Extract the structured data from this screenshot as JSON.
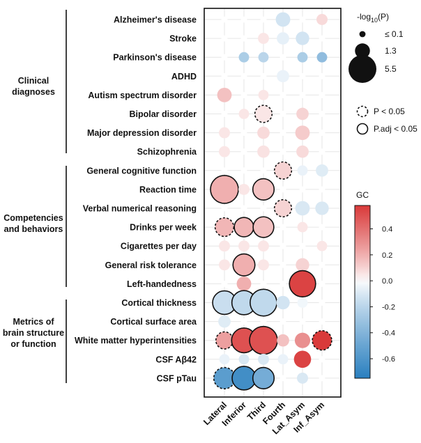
{
  "chart_data": {
    "type": "bubble-heatmap",
    "columns": [
      "Lateral",
      "Inferior",
      "Third",
      "Fourth",
      "Lat_Asym",
      "Inf_Asym"
    ],
    "groups": [
      {
        "label": [
          "Clinical",
          "diagnoses"
        ],
        "rows": [
          "Alzheimer's disease",
          "Stroke",
          "Parkinson's disease",
          "ADHD",
          "Autism spectrum disorder",
          "Bipolar disorder",
          "Major depression disorder",
          "Schizophrenia"
        ]
      },
      {
        "label": [
          "Competencies",
          "and behaviors"
        ],
        "rows": [
          "General cognitive function",
          "Reaction time",
          "Verbal numerical reasoning",
          "Drinks per week",
          "Cigarettes per day",
          "General risk tolerance",
          "Left-handedness"
        ]
      },
      {
        "label": [
          "Metrics of",
          "brain structure",
          "or function"
        ],
        "rows": [
          "Cortical thickness",
          "Cortical surface area",
          "White matter hyperintensities",
          "CSF Aβ42",
          "CSF pTau"
        ]
      }
    ],
    "rows": [
      "Alzheimer's disease",
      "Stroke",
      "Parkinson's disease",
      "ADHD",
      "Autism spectrum disorder",
      "Bipolar disorder",
      "Major depression disorder",
      "Schizophrenia",
      "General cognitive function",
      "Reaction time",
      "Verbal numerical reasoning",
      "Drinks per week",
      "Cigarettes per day",
      "General risk tolerance",
      "Left-handedness",
      "Cortical thickness",
      "Cortical surface area",
      "White matter hyperintensities",
      "CSF Aβ42",
      "CSF pTau"
    ],
    "gc": [
      [
        0.0,
        0.0,
        0.0,
        -0.12,
        0.0,
        0.08
      ],
      [
        0.0,
        0.0,
        0.05,
        -0.06,
        -0.12,
        0.0
      ],
      [
        0.0,
        -0.25,
        -0.2,
        0.0,
        -0.25,
        -0.35
      ],
      [
        0.0,
        0.0,
        0.0,
        -0.05,
        0.0,
        0.0
      ],
      [
        0.15,
        0.0,
        0.05,
        0.0,
        0.0,
        0.0
      ],
      [
        0.0,
        0.05,
        0.05,
        0.0,
        0.1,
        0.0
      ],
      [
        0.05,
        0.0,
        0.08,
        0.0,
        0.12,
        0.0
      ],
      [
        0.05,
        0.0,
        0.06,
        0.0,
        0.08,
        0.0
      ],
      [
        0.0,
        0.0,
        0.0,
        0.1,
        -0.05,
        -0.08
      ],
      [
        0.2,
        0.05,
        0.15,
        0.0,
        0.0,
        0.0
      ],
      [
        0.0,
        0.0,
        0.0,
        0.1,
        -0.1,
        -0.1
      ],
      [
        0.18,
        0.18,
        0.15,
        0.0,
        0.05,
        0.0
      ],
      [
        0.05,
        0.05,
        0.05,
        0.0,
        0.0,
        0.05
      ],
      [
        0.05,
        0.2,
        0.05,
        0.0,
        0.1,
        0.0
      ],
      [
        0.0,
        0.2,
        0.0,
        0.0,
        0.55,
        0.0
      ],
      [
        -0.15,
        -0.18,
        -0.18,
        -0.12,
        -0.03,
        0.0
      ],
      [
        -0.08,
        0.0,
        0.0,
        0.0,
        0.0,
        0.0
      ],
      [
        0.25,
        0.5,
        0.5,
        0.15,
        0.3,
        0.6
      ],
      [
        -0.05,
        -0.1,
        -0.1,
        -0.05,
        0.55,
        0.0
      ],
      [
        -0.55,
        -0.65,
        -0.45,
        0.0,
        -0.1,
        0.0
      ]
    ],
    "neg_log10_p": [
      [
        0.1,
        0.1,
        0.1,
        1.2,
        0.1,
        0.6
      ],
      [
        0.1,
        0.1,
        0.6,
        0.8,
        1.0,
        0.1
      ],
      [
        0.1,
        0.5,
        0.5,
        0.1,
        0.5,
        0.5
      ],
      [
        0.1,
        0.1,
        0.1,
        0.8,
        0.1,
        0.1
      ],
      [
        1.2,
        0.1,
        0.5,
        0.1,
        0.1,
        0.1
      ],
      [
        0.1,
        0.5,
        1.8,
        0.1,
        0.8,
        0.1
      ],
      [
        0.6,
        0.1,
        0.8,
        0.1,
        1.2,
        0.1
      ],
      [
        0.6,
        0.1,
        0.8,
        0.1,
        0.8,
        0.1
      ],
      [
        0.1,
        0.1,
        0.1,
        1.8,
        0.5,
        0.8
      ],
      [
        5.5,
        0.6,
        3.0,
        0.1,
        0.1,
        0.1
      ],
      [
        0.1,
        0.1,
        0.1,
        1.8,
        1.2,
        1.0
      ],
      [
        2.2,
        2.4,
        2.8,
        0.1,
        0.5,
        0.1
      ],
      [
        0.6,
        0.6,
        0.6,
        0.1,
        0.1,
        0.5
      ],
      [
        0.6,
        3.2,
        0.6,
        0.1,
        1.0,
        0.1
      ],
      [
        0.1,
        1.2,
        0.1,
        0.1,
        4.8,
        0.1
      ],
      [
        3.8,
        4.0,
        5.0,
        1.0,
        0.5,
        0.1
      ],
      [
        0.8,
        0.1,
        0.1,
        0.1,
        0.1,
        0.1
      ],
      [
        1.8,
        4.2,
        5.5,
        0.8,
        1.4,
        2.4
      ],
      [
        0.5,
        0.5,
        0.6,
        0.5,
        1.8,
        0.1
      ],
      [
        3.0,
        3.8,
        3.0,
        0.1,
        0.6,
        0.1
      ]
    ],
    "dashed_outline": [
      [
        5,
        2
      ],
      [
        8,
        3
      ],
      [
        10,
        3
      ],
      [
        11,
        0
      ],
      [
        17,
        0
      ],
      [
        17,
        5
      ],
      [
        19,
        0
      ]
    ],
    "solid_outline": [
      [
        9,
        0
      ],
      [
        9,
        2
      ],
      [
        11,
        1
      ],
      [
        11,
        2
      ],
      [
        13,
        1
      ],
      [
        14,
        4
      ],
      [
        15,
        0
      ],
      [
        15,
        1
      ],
      [
        15,
        2
      ],
      [
        17,
        1
      ],
      [
        17,
        2
      ],
      [
        19,
        1
      ],
      [
        19,
        2
      ]
    ],
    "size_legend": {
      "title": "-log10(P)",
      "entries": [
        {
          "label": "≤ 0.1",
          "value": 0.1
        },
        {
          "label": "1.3",
          "value": 1.3
        },
        {
          "label": "5.5",
          "value": 5.5
        }
      ]
    },
    "outline_legend": {
      "dashed": "P < 0.05",
      "solid": "P.adj < 0.05"
    },
    "colorbar": {
      "title": "GC",
      "min": -0.75,
      "max": 0.58,
      "ticks": [
        0.4,
        0.2,
        0.0,
        -0.2,
        -0.4,
        -0.6
      ],
      "tick_labels": [
        "0.4",
        "0.2",
        "0.0",
        "-0.2",
        "-0.4",
        "-0.6"
      ]
    },
    "colors": {
      "negative": "#2a7fbf",
      "mid": "#ffffff",
      "positive": "#d93a3a",
      "grid": "#e6e6e6"
    }
  }
}
